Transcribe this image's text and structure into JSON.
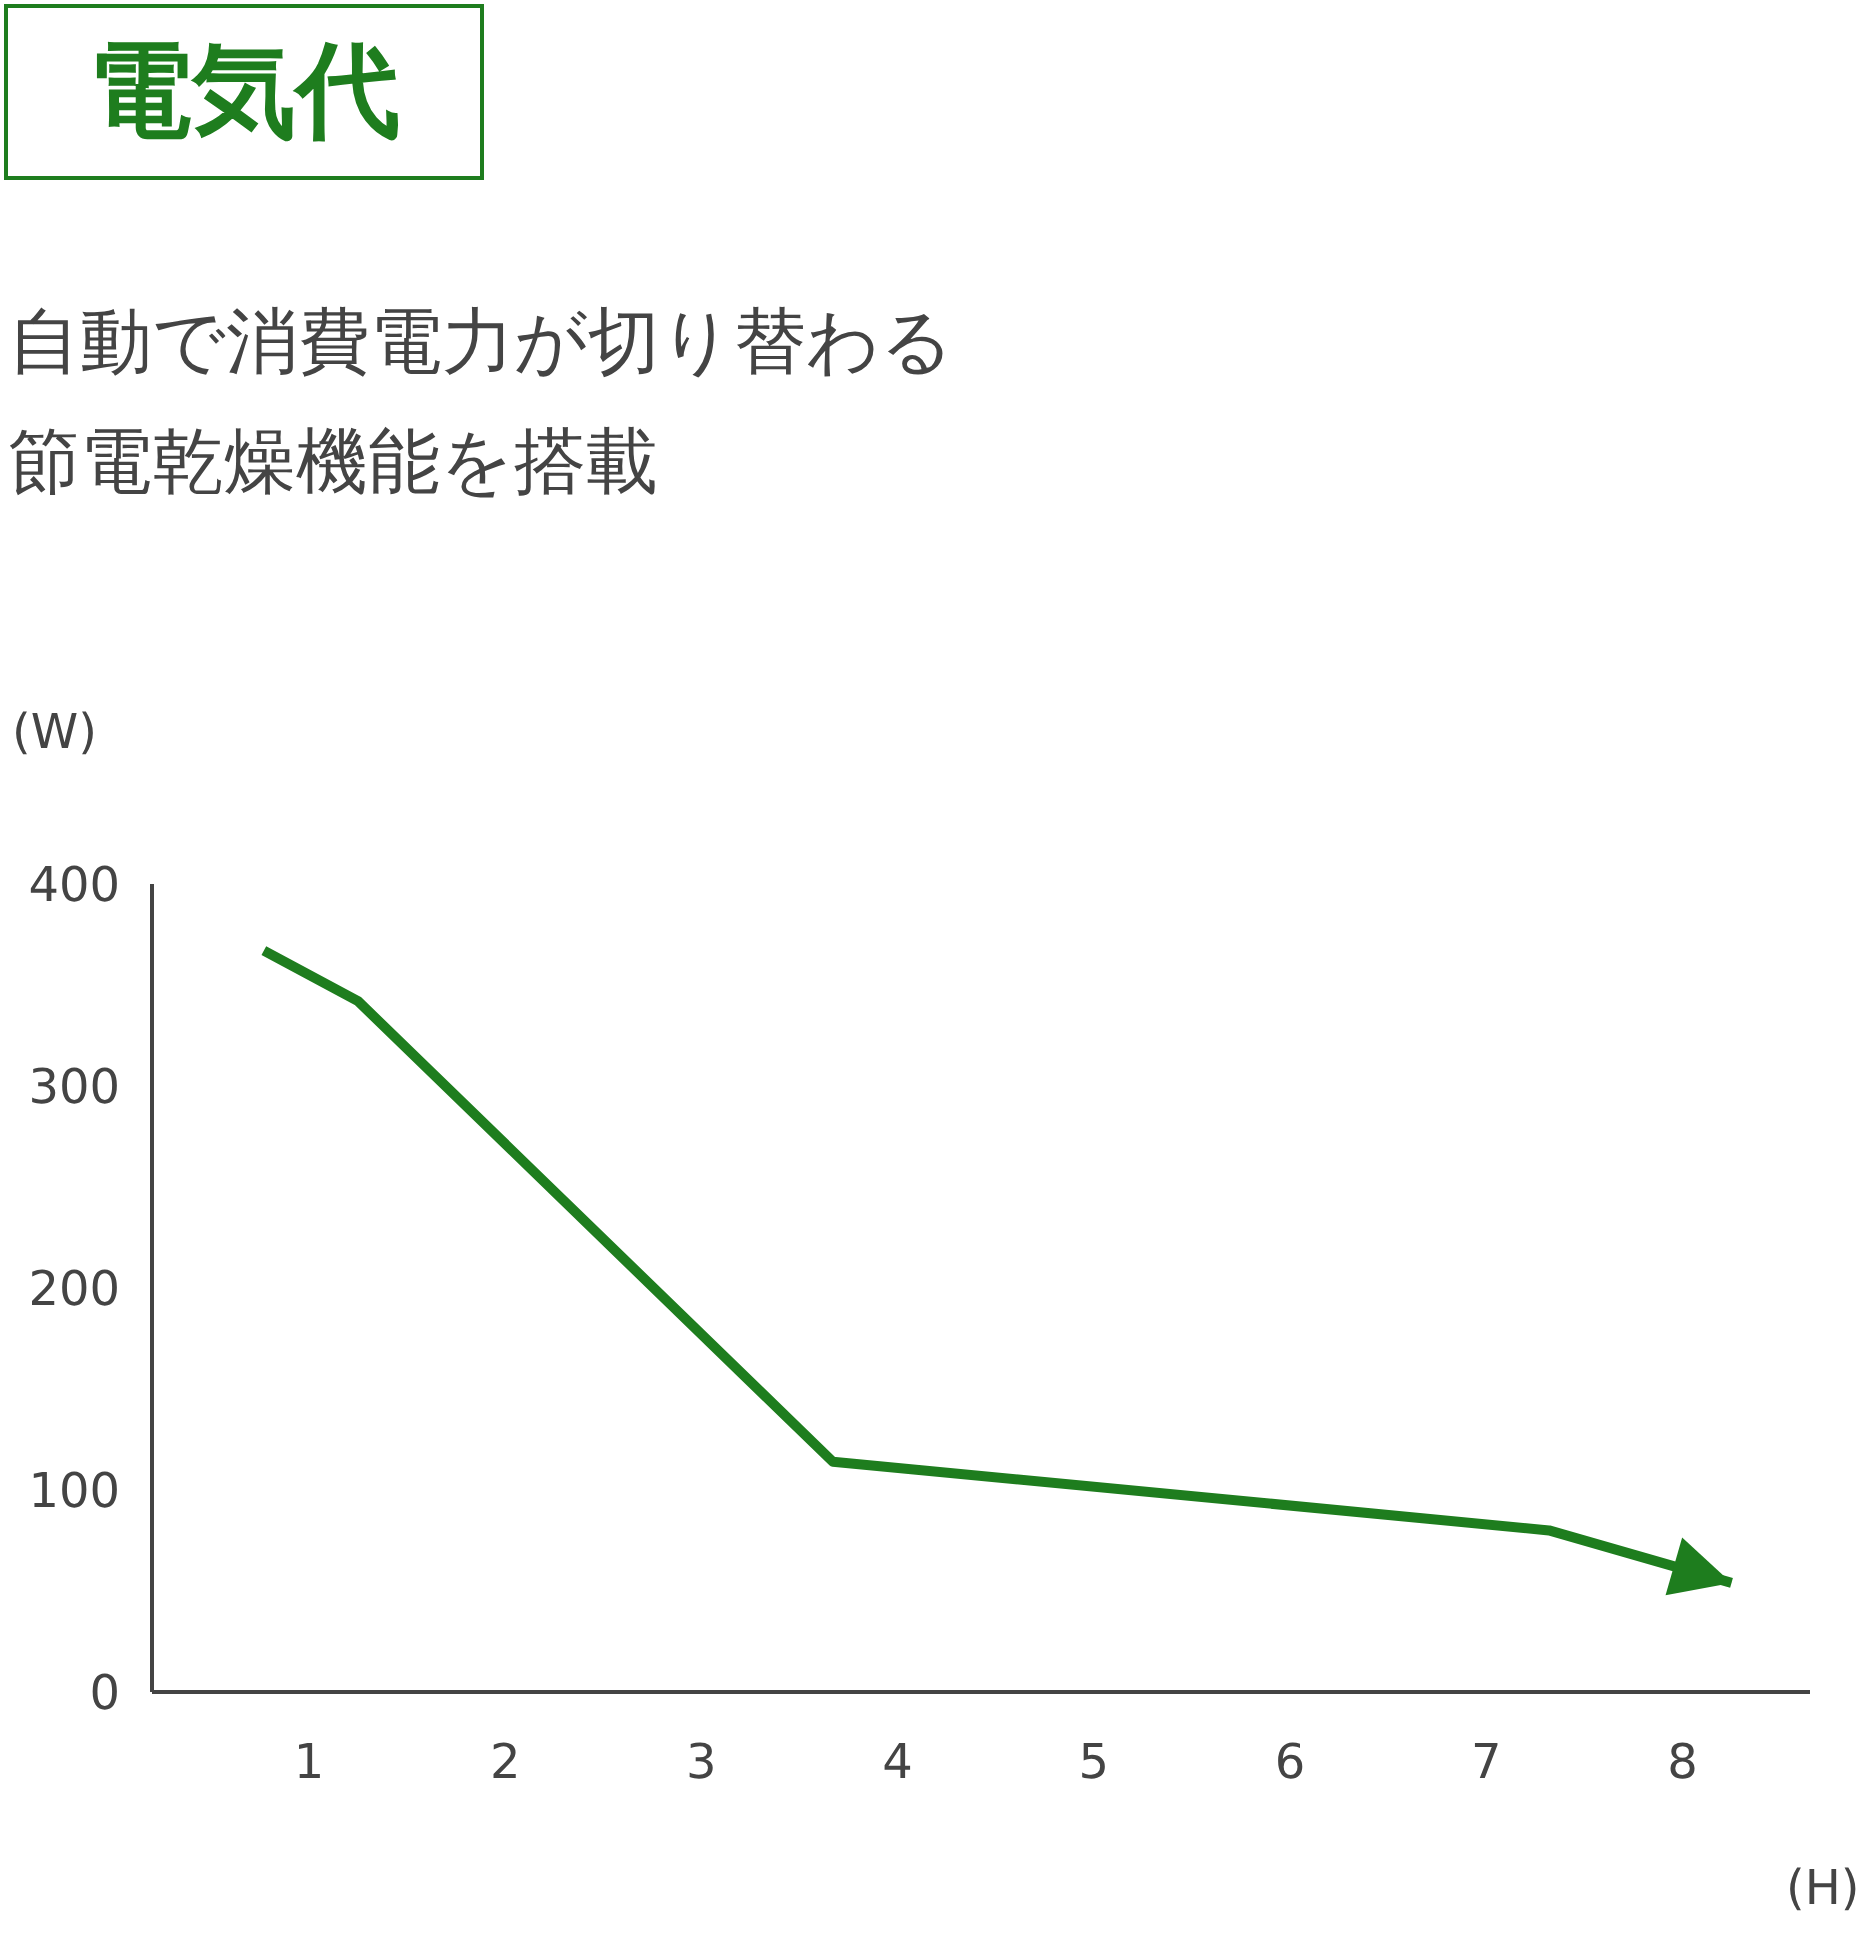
{
  "chart_data": {
    "type": "line",
    "title": "電気代",
    "subtitle": "自動で消費電力が切り替わる節電乾燥機能を搭載",
    "xlabel": "(H)",
    "ylabel": "(W)",
    "series": [
      {
        "color": "#1e7d1e",
        "x": [
          0.77,
          1.25,
          3.67,
          7.32,
          8.25
        ],
        "values": [
          367,
          342,
          114,
          80,
          54
        ]
      }
    ],
    "xlim": [
      0.2,
      8.65
    ],
    "xticks": [
      1,
      2,
      3,
      4,
      5,
      6,
      7,
      8
    ],
    "ylim": [
      0,
      400
    ],
    "yticks": [
      0,
      100,
      200,
      300,
      400
    ],
    "grid": false,
    "legend": false,
    "marker": "none",
    "line_style": "solid"
  }
}
